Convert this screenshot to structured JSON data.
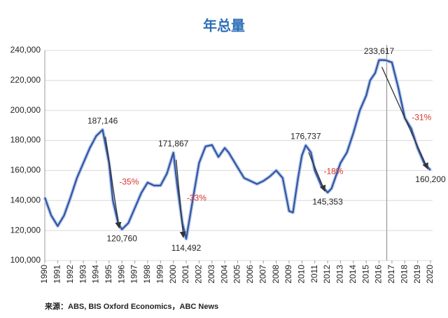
{
  "chart_data": {
    "type": "line",
    "title": "年总量",
    "source": "来源：ABS, BIS Oxford Economics，ABC News",
    "x": [
      1990,
      1990.5,
      1991,
      1991.5,
      1992,
      1992.5,
      1993,
      1993.5,
      1994,
      1994.5,
      1995,
      1995.3,
      1995.7,
      1996,
      1996.5,
      1997,
      1997.5,
      1998,
      1998.5,
      1999,
      1999.5,
      2000,
      2000.3,
      2000.7,
      2001,
      2001.5,
      2002,
      2002.5,
      2003,
      2003.5,
      2004,
      2004.3,
      2005,
      2005.5,
      2006,
      2006.5,
      2007,
      2007.5,
      2008,
      2008.5,
      2009,
      2009.3,
      2009.7,
      2010,
      2010.3,
      2010.7,
      2011,
      2011.5,
      2012,
      2012.3,
      2013,
      2013.5,
      2014,
      2014.5,
      2015,
      2015.3,
      2015.7,
      2016,
      2016.5,
      2017,
      2017.5,
      2018,
      2018.5,
      2019,
      2019.5,
      2020
    ],
    "values": [
      142000,
      130000,
      123000,
      130000,
      142000,
      155000,
      165000,
      175000,
      183000,
      187146,
      165000,
      140000,
      125000,
      120760,
      125000,
      135000,
      145000,
      152000,
      150000,
      150000,
      158000,
      171867,
      150000,
      125000,
      114492,
      140000,
      165000,
      176000,
      177000,
      169000,
      175000,
      172000,
      162000,
      155000,
      153000,
      151000,
      153000,
      156000,
      160000,
      155000,
      133000,
      132000,
      155000,
      170000,
      176737,
      172000,
      160000,
      150000,
      145353,
      148000,
      165000,
      172000,
      185000,
      200000,
      210000,
      220000,
      225000,
      233617,
      233500,
      232000,
      215000,
      195000,
      188000,
      175000,
      165000,
      160200
    ],
    "value_labels": [
      null,
      null,
      null,
      null,
      null,
      null,
      null,
      null,
      null,
      "187,146",
      null,
      null,
      null,
      "120,760",
      null,
      null,
      null,
      null,
      null,
      null,
      null,
      "171,867",
      null,
      null,
      "114,492",
      null,
      null,
      null,
      null,
      null,
      null,
      null,
      null,
      null,
      null,
      null,
      null,
      null,
      null,
      null,
      null,
      null,
      null,
      null,
      "176,737",
      null,
      null,
      null,
      "145,353",
      null,
      null,
      null,
      null,
      null,
      null,
      null,
      null,
      "233,617",
      null,
      null,
      null,
      null,
      null,
      null,
      null,
      "160,200"
    ],
    "color": "#2f55a4",
    "changes": [
      {
        "value": -35,
        "label": "-35%",
        "start": 1994.5,
        "end": 1996
      },
      {
        "value": -33,
        "label": "-33%",
        "start": 2000,
        "end": 2001
      },
      {
        "value": -18,
        "label": "-18%",
        "start": 2010.3,
        "end": 2012
      },
      {
        "value": -31,
        "label": "-31%",
        "start": 2016,
        "end": 2020
      }
    ],
    "vline": 2016.6,
    "xlim": [
      1990,
      2020
    ],
    "xticks": [
      1990,
      1991,
      1992,
      1993,
      1994,
      1995,
      1996,
      1997,
      1998,
      1999,
      2000,
      2001,
      2002,
      2003,
      2004,
      2005,
      2006,
      2007,
      2008,
      2009,
      2010,
      2011,
      2012,
      2013,
      2014,
      2015,
      2016,
      2017,
      2018,
      2019,
      2020
    ],
    "ylim": [
      100000,
      240000
    ],
    "yticks": [
      {
        "value": 100000,
        "label": "100,000"
      },
      {
        "value": 120000,
        "label": "120,000"
      },
      {
        "value": 140000,
        "label": "140,000"
      },
      {
        "value": 160000,
        "label": "160,000"
      },
      {
        "value": 180000,
        "label": "180,000"
      },
      {
        "value": 200000,
        "label": "200,000"
      },
      {
        "value": 220000,
        "label": "220,000"
      },
      {
        "value": 240000,
        "label": "240,000"
      }
    ],
    "grid": true
  }
}
